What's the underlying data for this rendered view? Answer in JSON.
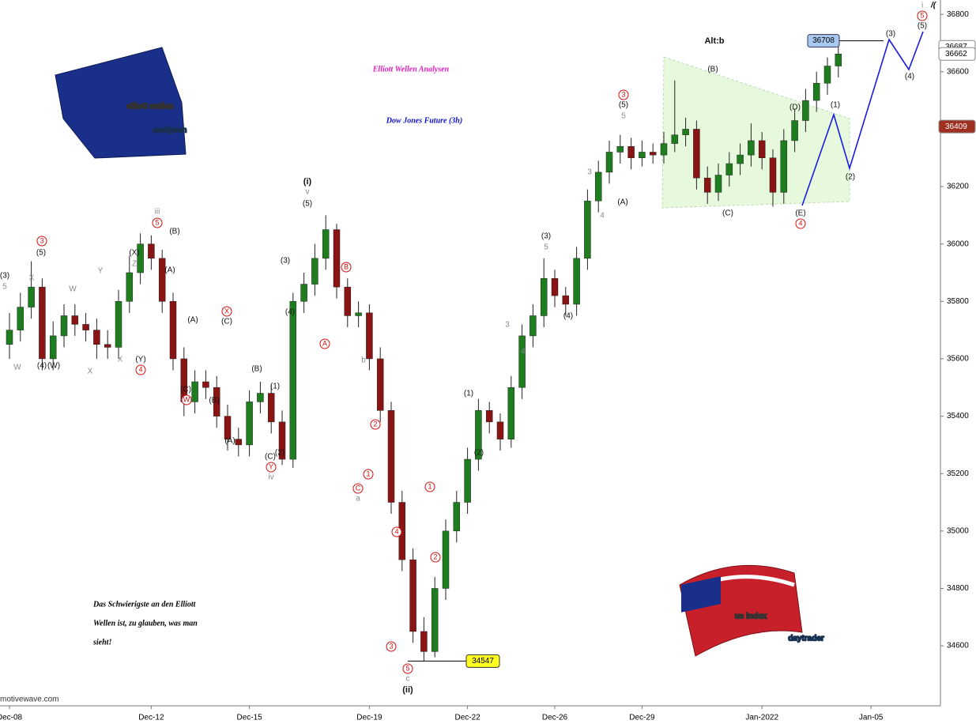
{
  "chart_data": {
    "type": "candlestick",
    "title": "Elliott Wellen Analysen",
    "subtitle": "Dow Jones Future (3h)",
    "quote": [
      "Das Schwierigste an den Elliott",
      "Wellen ist, zu glauben, was man",
      "sieht!"
    ],
    "source": "motivewave.com",
    "logo_top": [
      "elliott wellen",
      "analysen"
    ],
    "logo_bottom": [
      "us index",
      "daytrader"
    ],
    "corner_marks": [
      "i",
      "/("
    ],
    "categories": [
      "Dec-08",
      null,
      null,
      null,
      null,
      null,
      null,
      null,
      null,
      null,
      null,
      null,
      null,
      "Dec-12",
      null,
      null,
      null,
      null,
      null,
      null,
      null,
      null,
      "Dec-15",
      null,
      null,
      null,
      null,
      null,
      null,
      null,
      null,
      null,
      null,
      "Dec-19",
      null,
      null,
      null,
      null,
      null,
      null,
      null,
      null,
      "Dec-22",
      null,
      null,
      null,
      null,
      null,
      null,
      null,
      "Dec-26",
      null,
      null,
      null,
      null,
      null,
      null,
      null,
      "Dec-29",
      null,
      null,
      null,
      null,
      null,
      null,
      null,
      null,
      null,
      null,
      "Jan-2022",
      null,
      null,
      null,
      null,
      null,
      null,
      null,
      null,
      null,
      "Jan-05"
    ],
    "open": [
      35650,
      35700,
      35780,
      35850,
      35600,
      35680,
      35750,
      35720,
      35700,
      35650,
      35640,
      35800,
      35900,
      36000,
      35950,
      35800,
      35600,
      35450,
      35520,
      35500,
      35400,
      35320,
      35300,
      35450,
      35480,
      35380,
      35250,
      35800,
      35860,
      35950,
      36050,
      35850,
      35750,
      35760,
      35600,
      35420,
      35100,
      34900,
      34650,
      34580,
      34800,
      35000,
      35100,
      35250,
      35420,
      35380,
      35320,
      35500,
      35680,
      35750,
      35880,
      35820,
      35790,
      35950,
      36150,
      36250,
      36320,
      36340,
      36300,
      36320,
      36310,
      36350,
      36380,
      36400,
      36230,
      36180,
      36240,
      36280,
      36310,
      36360,
      36300,
      36180,
      36360,
      36430,
      36500,
      36560,
      36620,
      null,
      null,
      null
    ],
    "high": [
      35760,
      35830,
      35940,
      35880,
      35730,
      35790,
      35790,
      35760,
      35740,
      35700,
      35840,
      35960,
      36037,
      36030,
      35980,
      35830,
      35640,
      35560,
      35560,
      35540,
      35440,
      35360,
      35490,
      35520,
      35510,
      35420,
      35830,
      35900,
      36000,
      36100,
      36070,
      35880,
      35800,
      35790,
      35640,
      35450,
      35140,
      34940,
      34700,
      34840,
      35040,
      35140,
      35290,
      35460,
      35450,
      35410,
      35540,
      35720,
      35790,
      35950,
      35910,
      35850,
      35990,
      36190,
      36290,
      36360,
      36380,
      36370,
      36360,
      36350,
      36390,
      36570,
      36440,
      36430,
      36270,
      36280,
      36320,
      36350,
      36420,
      36390,
      36330,
      36400,
      36470,
      36540,
      36600,
      36650,
      36708,
      null,
      null,
      null
    ],
    "low": [
      35600,
      35660,
      35740,
      35560,
      35560,
      35640,
      35680,
      35660,
      35600,
      35600,
      35600,
      35760,
      35860,
      35910,
      35760,
      35560,
      35400,
      35410,
      35460,
      35360,
      35280,
      35260,
      35260,
      35410,
      35340,
      35230,
      35220,
      35760,
      35820,
      35910,
      35810,
      35710,
      35710,
      35560,
      35380,
      35060,
      34860,
      34610,
      34547,
      34560,
      34760,
      34960,
      35060,
      35210,
      35340,
      35280,
      35290,
      35460,
      35640,
      35710,
      35780,
      35750,
      35750,
      35910,
      36110,
      36210,
      36280,
      36260,
      36270,
      36280,
      36280,
      36320,
      36340,
      36190,
      36140,
      36150,
      36200,
      36240,
      36270,
      36260,
      36130,
      36140,
      36320,
      36390,
      36460,
      36520,
      36580,
      null,
      null,
      null
    ],
    "close": [
      35700,
      35780,
      35850,
      35600,
      35680,
      35750,
      35720,
      35700,
      35650,
      35640,
      35800,
      35900,
      36000,
      35950,
      35800,
      35600,
      35450,
      35520,
      35500,
      35400,
      35320,
      35300,
      35450,
      35480,
      35380,
      35250,
      35800,
      35860,
      35950,
      36050,
      35850,
      35750,
      35760,
      35600,
      35420,
      35100,
      34900,
      34650,
      34580,
      34800,
      35000,
      35100,
      35250,
      35420,
      35380,
      35320,
      35500,
      35680,
      35750,
      35880,
      35820,
      35790,
      35950,
      36150,
      36250,
      36320,
      36340,
      36300,
      36320,
      36310,
      36350,
      36380,
      36400,
      36230,
      36180,
      36240,
      36280,
      36310,
      36360,
      36300,
      36180,
      36360,
      36430,
      36500,
      36560,
      36620,
      36662,
      null,
      null,
      null
    ],
    "up_color": "#1e7d1e",
    "down_color": "#8a1414",
    "ylim": [
      34391,
      36850
    ],
    "yticks": [
      34600,
      34800,
      35000,
      35200,
      35400,
      35600,
      35800,
      36000,
      36200,
      36400,
      36600,
      36800
    ],
    "price_labels": {
      "high_box": 36708,
      "low_box": 34547,
      "prior": 36687,
      "last": 36662,
      "marker": 36409
    },
    "wave_labels": [
      "(3)",
      "5",
      "(5)",
      "3",
      "(4)",
      "(W)",
      "W",
      "W",
      "Y",
      "(X)",
      "Z",
      "(Y)",
      "4",
      "iii",
      "5",
      "(B)",
      "(A)",
      "(A)",
      "(C)",
      "W",
      "X",
      "(C)",
      "(B)",
      "(A)",
      "(B)",
      "(1)",
      "(C)",
      "(2)",
      "Y",
      "iv",
      "(3)",
      "(4)",
      "(i)",
      "v",
      "(5)",
      "B",
      "A",
      "b",
      "2",
      "1",
      "C",
      "a",
      "4",
      "3",
      "5",
      "c",
      "(ii)",
      "1",
      "2",
      "(1)",
      "(2)",
      "(3)",
      "5",
      "(4)",
      "(A)",
      "3",
      "(5)",
      "5",
      "(B)",
      "(C)",
      "(D)",
      "(E)",
      "4",
      "(1)",
      "(2)",
      "(3)",
      "(4)",
      "(5)",
      "5",
      "Alt:b",
      "X",
      "X",
      "X",
      "3",
      "4",
      "3",
      "4"
    ]
  }
}
